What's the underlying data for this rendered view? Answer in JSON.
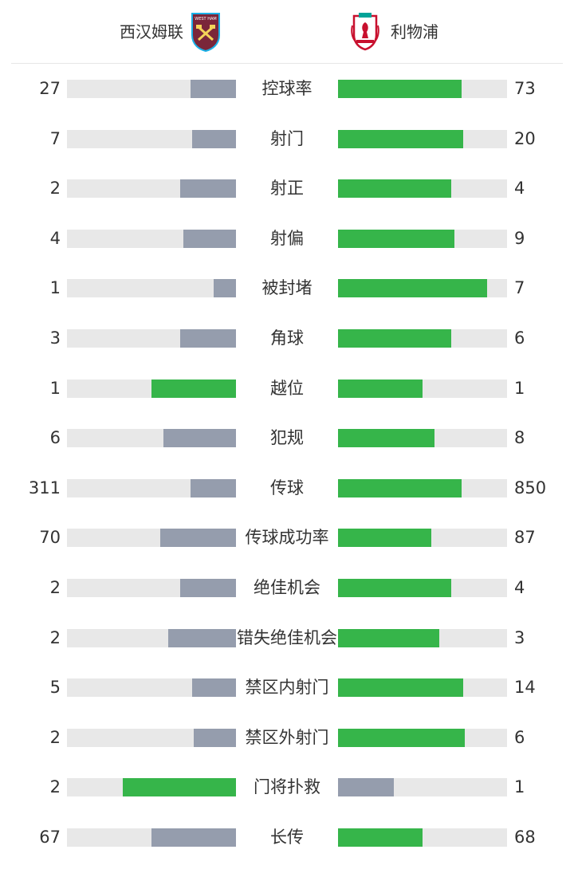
{
  "home": {
    "name": "西汉姆联",
    "crest_icon": "west-ham-crest-icon"
  },
  "away": {
    "name": "利物浦",
    "crest_icon": "liverpool-crest-icon"
  },
  "colors": {
    "higher": "#36b54a",
    "lower": "#959dad",
    "track": "#e8e8e8"
  },
  "stats": [
    {
      "label": "控球率",
      "home": "27",
      "away": "73",
      "home_ratio": 0.27,
      "away_ratio": 0.73,
      "home_color": "lower",
      "away_color": "higher"
    },
    {
      "label": "射门",
      "home": "7",
      "away": "20",
      "home_ratio": 0.26,
      "away_ratio": 0.74,
      "home_color": "lower",
      "away_color": "higher"
    },
    {
      "label": "射正",
      "home": "2",
      "away": "4",
      "home_ratio": 0.33,
      "away_ratio": 0.67,
      "home_color": "lower",
      "away_color": "higher"
    },
    {
      "label": "射偏",
      "home": "4",
      "away": "9",
      "home_ratio": 0.31,
      "away_ratio": 0.69,
      "home_color": "lower",
      "away_color": "higher"
    },
    {
      "label": "被封堵",
      "home": "1",
      "away": "7",
      "home_ratio": 0.13,
      "away_ratio": 0.88,
      "home_color": "lower",
      "away_color": "higher"
    },
    {
      "label": "角球",
      "home": "3",
      "away": "6",
      "home_ratio": 0.33,
      "away_ratio": 0.67,
      "home_color": "lower",
      "away_color": "higher"
    },
    {
      "label": "越位",
      "home": "1",
      "away": "1",
      "home_ratio": 0.5,
      "away_ratio": 0.5,
      "home_color": "higher",
      "away_color": "higher"
    },
    {
      "label": "犯规",
      "home": "6",
      "away": "8",
      "home_ratio": 0.43,
      "away_ratio": 0.57,
      "home_color": "lower",
      "away_color": "higher"
    },
    {
      "label": "传球",
      "home": "311",
      "away": "850",
      "home_ratio": 0.27,
      "away_ratio": 0.73,
      "home_color": "lower",
      "away_color": "higher"
    },
    {
      "label": "传球成功率",
      "home": "70",
      "away": "87",
      "home_ratio": 0.45,
      "away_ratio": 0.55,
      "home_color": "lower",
      "away_color": "higher"
    },
    {
      "label": "绝佳机会",
      "home": "2",
      "away": "4",
      "home_ratio": 0.33,
      "away_ratio": 0.67,
      "home_color": "lower",
      "away_color": "higher"
    },
    {
      "label": "错失绝佳机会",
      "home": "2",
      "away": "3",
      "home_ratio": 0.4,
      "away_ratio": 0.6,
      "home_color": "lower",
      "away_color": "higher"
    },
    {
      "label": "禁区内射门",
      "home": "5",
      "away": "14",
      "home_ratio": 0.26,
      "away_ratio": 0.74,
      "home_color": "lower",
      "away_color": "higher"
    },
    {
      "label": "禁区外射门",
      "home": "2",
      "away": "6",
      "home_ratio": 0.25,
      "away_ratio": 0.75,
      "home_color": "lower",
      "away_color": "higher"
    },
    {
      "label": "门将扑救",
      "home": "2",
      "away": "1",
      "home_ratio": 0.67,
      "away_ratio": 0.33,
      "home_color": "higher",
      "away_color": "lower"
    },
    {
      "label": "长传",
      "home": "67",
      "away": "68",
      "home_ratio": 0.5,
      "away_ratio": 0.5,
      "home_color": "lower",
      "away_color": "higher"
    }
  ]
}
